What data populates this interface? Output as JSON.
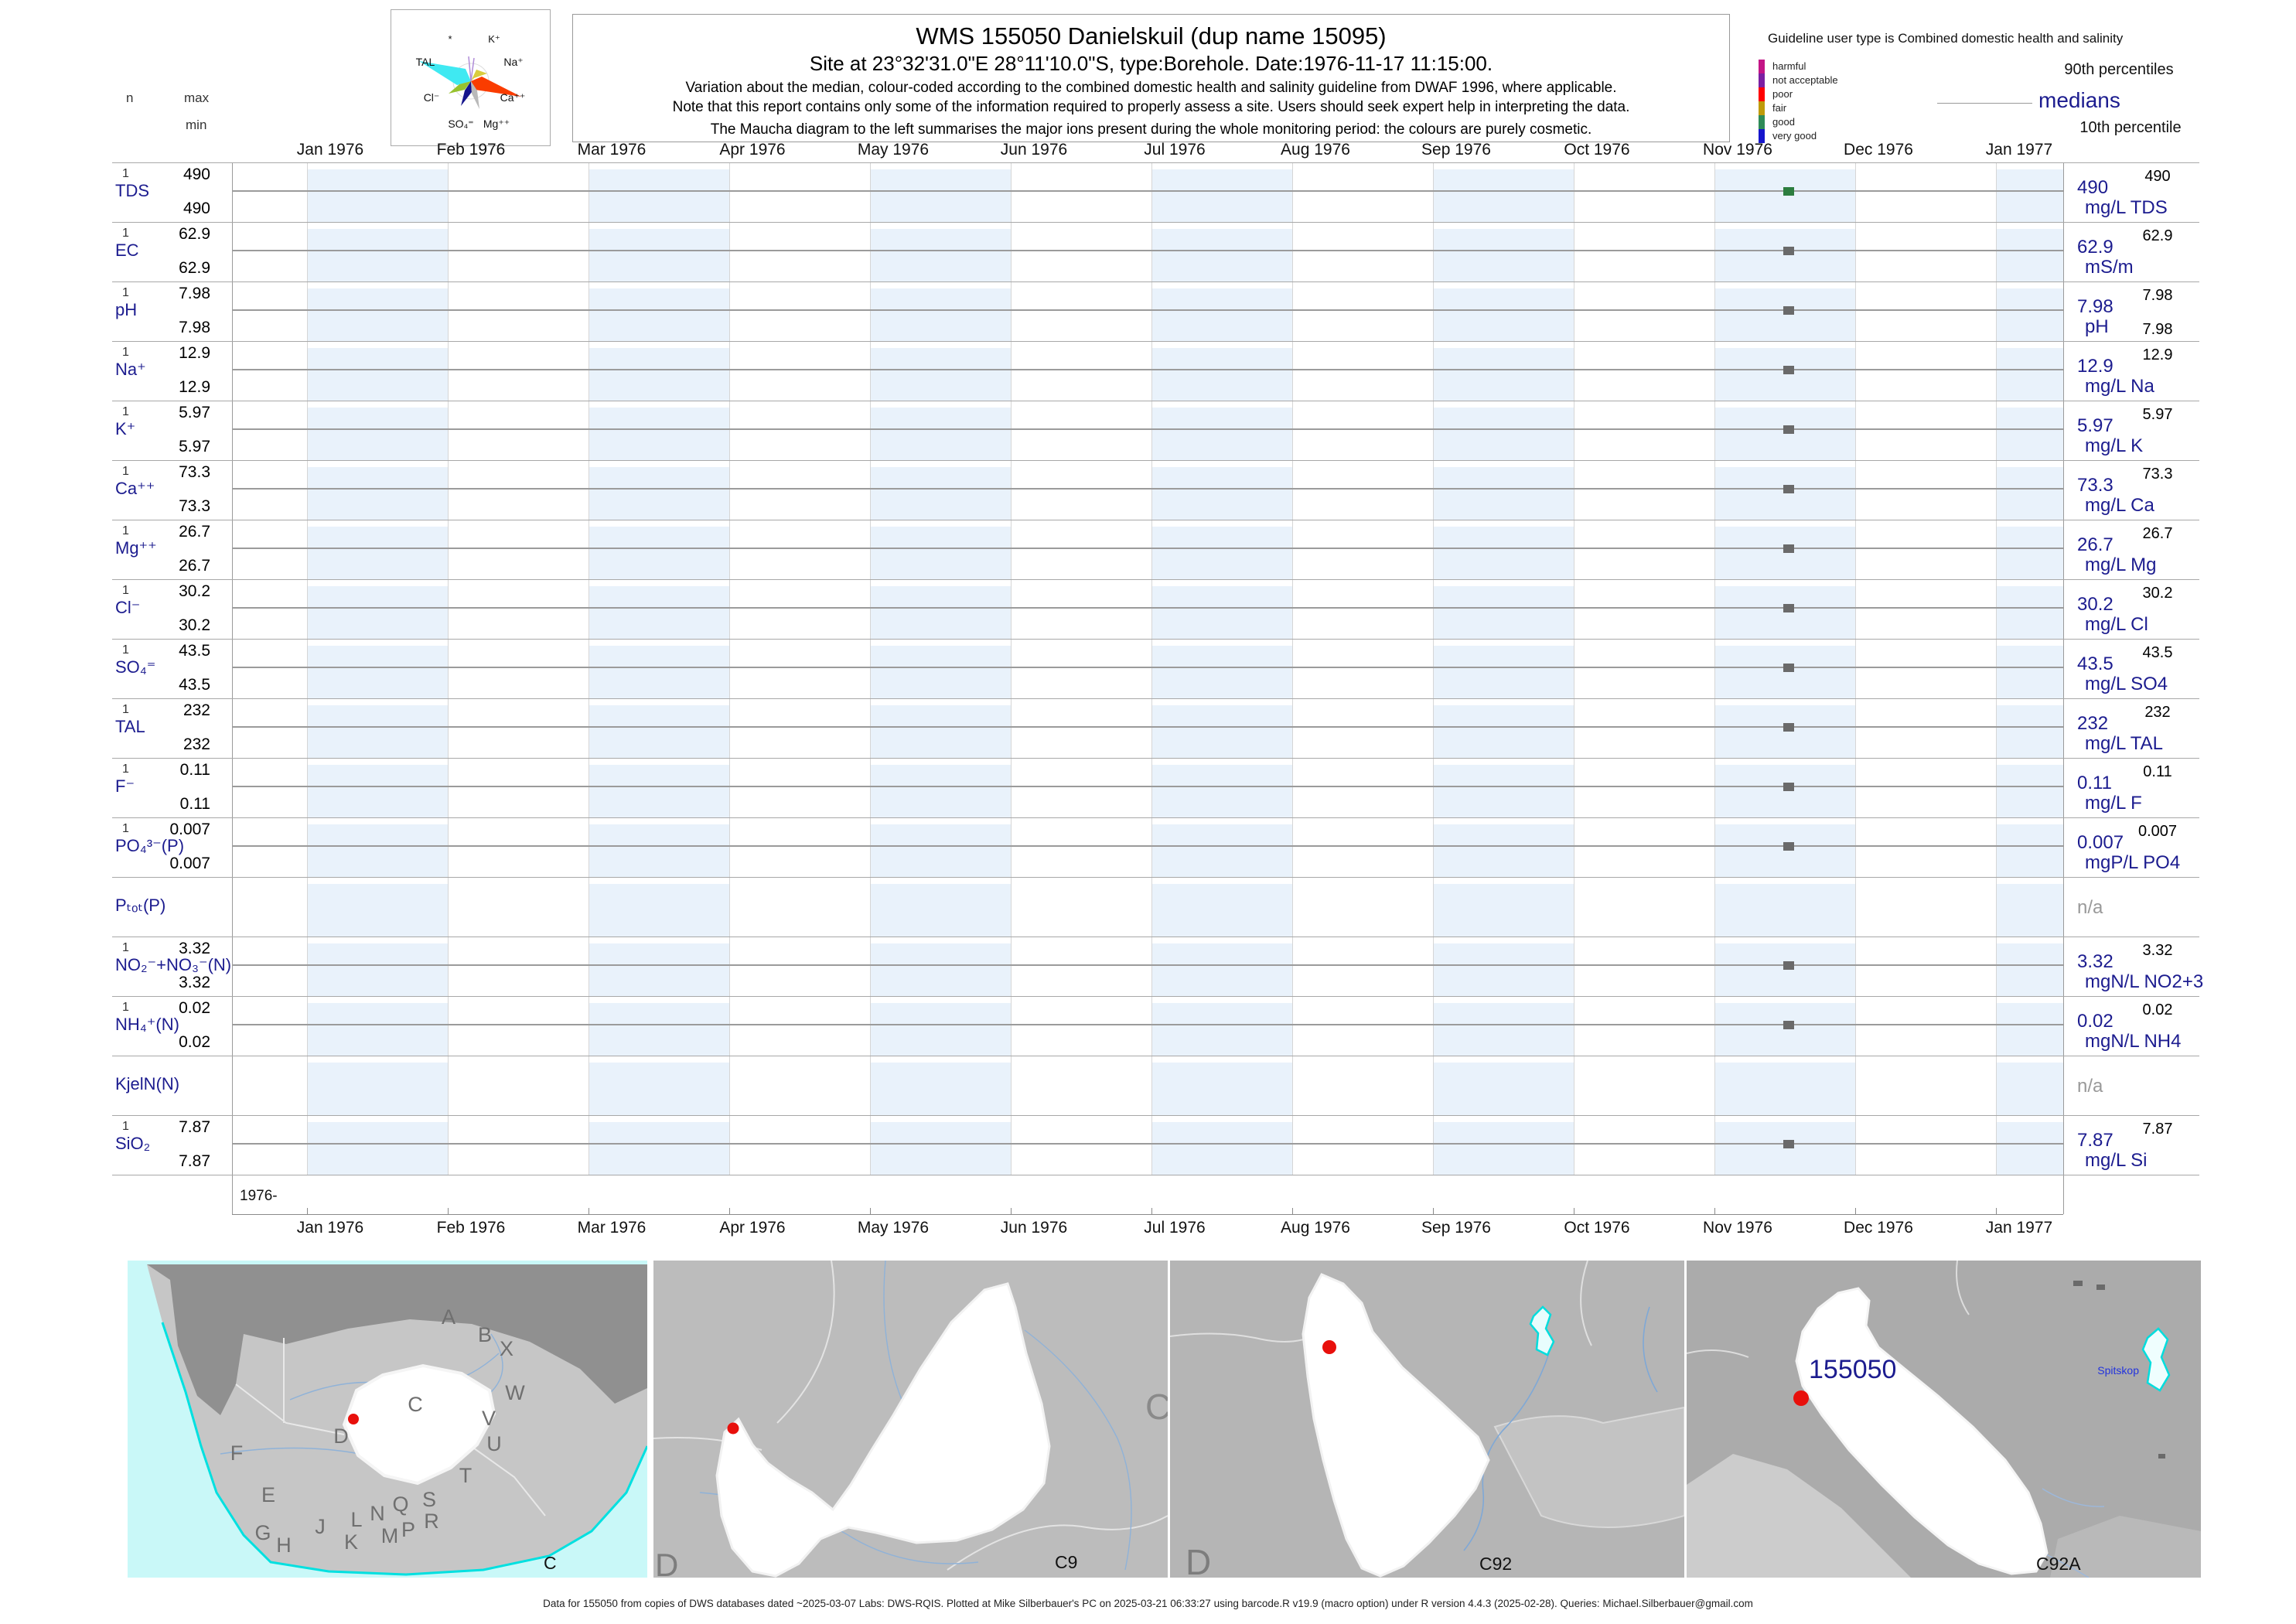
{
  "header": {
    "title": "WMS 155050  Danielskuil (dup name 15095)",
    "subtitle": "Site at 23°32'31.0\"E 28°11'10.0\"S, type:Borehole. Date:1976-11-17 11:15:00.",
    "note1": "Variation about the median,  colour-coded according to the combined domestic health and salinity guideline from DWAF 1996, where applicable.",
    "note2": "Note that this report contains only some of the information required to properly assess a site. Users should seek expert help in interpreting the data.",
    "note3": "The Maucha diagram to the left summarises the major ions present during the whole monitoring period: the colours are purely cosmetic."
  },
  "maucha": {
    "labels": [
      "*",
      "K⁺",
      "TAL",
      "Na⁺",
      "Cl⁻",
      "Ca⁺⁺",
      "SO₄⁼",
      "Mg⁺⁺"
    ]
  },
  "legend": {
    "guideline_text": "Guideline user type is Combined domestic health and salinity",
    "classes": [
      {
        "label": "harmful",
        "color": "#c31586"
      },
      {
        "label": "not acceptable",
        "color": "#7b1fa2"
      },
      {
        "label": "poor",
        "color": "#ff0000"
      },
      {
        "label": "fair",
        "color": "#bf9b0a"
      },
      {
        "label": "good",
        "color": "#2e8b57"
      },
      {
        "label": "very good",
        "color": "#1515cc"
      }
    ],
    "p90_label": "90th percentiles",
    "median_label": "medians",
    "p10_label": "10th percentile"
  },
  "axis": {
    "n_label": "n",
    "max_label": "max",
    "min_label": "min",
    "year_label": "1976-",
    "months": [
      "Jan 1976",
      "Feb 1976",
      "Mar 1976",
      "Apr 1976",
      "May 1976",
      "Jun 1976",
      "Jul 1976",
      "Aug 1976",
      "Sep 1976",
      "Oct 1976",
      "Nov 1976",
      "Dec 1976",
      "Jan 1977"
    ]
  },
  "rows": [
    {
      "name": "TDS",
      "n": "1",
      "max": "490",
      "min": "490",
      "p90": "490",
      "median": "490",
      "unit": "mg/L TDS",
      "dot": "#2c7d3e"
    },
    {
      "name": "EC",
      "n": "1",
      "max": "62.9",
      "min": "62.9",
      "p90": "62.9",
      "median": "62.9",
      "unit": "mS/m",
      "dot": "#6a6a6a"
    },
    {
      "name": "pH",
      "n": "1",
      "max": "7.98",
      "min": "7.98",
      "p90": "7.98",
      "p10": "7.98",
      "median": "7.98",
      "unit": "pH",
      "dot": "#6a6a6a"
    },
    {
      "name": "Na⁺",
      "n": "1",
      "max": "12.9",
      "min": "12.9",
      "p90": "12.9",
      "median": "12.9",
      "unit": "mg/L Na",
      "dot": "#6a6a6a"
    },
    {
      "name": "K⁺",
      "n": "1",
      "max": "5.97",
      "min": "5.97",
      "p90": "5.97",
      "median": "5.97",
      "unit": "mg/L K",
      "dot": "#6a6a6a"
    },
    {
      "name": "Ca⁺⁺",
      "n": "1",
      "max": "73.3",
      "min": "73.3",
      "p90": "73.3",
      "median": "73.3",
      "unit": "mg/L Ca",
      "dot": "#6a6a6a"
    },
    {
      "name": "Mg⁺⁺",
      "n": "1",
      "max": "26.7",
      "min": "26.7",
      "p90": "26.7",
      "median": "26.7",
      "unit": "mg/L Mg",
      "dot": "#6a6a6a"
    },
    {
      "name": "Cl⁻",
      "n": "1",
      "max": "30.2",
      "min": "30.2",
      "p90": "30.2",
      "median": "30.2",
      "unit": "mg/L Cl",
      "dot": "#6a6a6a"
    },
    {
      "name": "SO₄⁼",
      "n": "1",
      "max": "43.5",
      "min": "43.5",
      "p90": "43.5",
      "median": "43.5",
      "unit": "mg/L SO4",
      "dot": "#6a6a6a"
    },
    {
      "name": "TAL",
      "n": "1",
      "max": "232",
      "min": "232",
      "p90": "232",
      "median": "232",
      "unit": "mg/L TAL",
      "dot": "#6a6a6a"
    },
    {
      "name": "F⁻",
      "n": "1",
      "max": "0.11",
      "min": "0.11",
      "p90": "0.11",
      "median": "0.11",
      "unit": "mg/L F",
      "dot": "#6a6a6a"
    },
    {
      "name": "PO₄³⁻(P)",
      "n": "1",
      "max": "0.007",
      "min": "0.007",
      "p90": "0.007",
      "median": "0.007",
      "unit": "mgP/L PO4",
      "dot": "#6a6a6a"
    },
    {
      "name": "Pₜₒₜ(P)",
      "na": "n/a"
    },
    {
      "name": "NO₂⁻+NO₃⁻(N)",
      "n": "1",
      "max": "3.32",
      "min": "3.32",
      "p90": "3.32",
      "median": "3.32",
      "unit": "mgN/L NO2+3",
      "dot": "#6a6a6a"
    },
    {
      "name": "NH₄⁺(N)",
      "n": "1",
      "max": "0.02",
      "min": "0.02",
      "p90": "0.02",
      "median": "0.02",
      "unit": "mgN/L NH4",
      "dot": "#6a6a6a"
    },
    {
      "name": "KjelN(N)",
      "na": "n/a"
    },
    {
      "name": "SiO₂",
      "n": "1",
      "max": "7.87",
      "min": "7.87",
      "p90": "7.87",
      "median": "7.87",
      "unit": "mg/L Si",
      "dot": "#6a6a6a"
    }
  ],
  "maps": {
    "panel1": {
      "code": "C",
      "letters": [
        "A",
        "B",
        "X",
        "C",
        "W",
        "V",
        "U",
        "T",
        "S",
        "R",
        "Q",
        "P",
        "N",
        "M",
        "L",
        "K",
        "J",
        "H",
        "G",
        "E",
        "F",
        "D"
      ]
    },
    "panel2": {
      "code": "C9",
      "corner_letter": "D",
      "edge_letter": "C"
    },
    "panel3": {
      "code": "C92",
      "corner_letter": "D"
    },
    "panel4": {
      "code": "C92A",
      "station": "155050",
      "place": "Spitskop"
    }
  },
  "footer": {
    "text": "Data for 155050 from copies of DWS databases dated ~2025-03-07 Labs: DWS-RQIS. Plotted at Mike Silberbauer's PC on 2025-03-21 06:33:27 using barcode.R v19.9 (macro option) under R version 4.4.3 (2025-02-28). Queries: Michael.Silberbauer@gmail.com"
  },
  "colors": {
    "accent_navy": "#1c1c8f",
    "band_blue": "#e9f2fb",
    "dot_green": "#2c7d3e",
    "dot_gray": "#6a6a6a",
    "marker_red": "#e8100c",
    "ocean_cyan": "#c9f8f8"
  },
  "chart_data": {
    "type": "scatter",
    "title": "WMS 155050  Danielskuil (dup name 15095)",
    "x_range": [
      "Jan 1976",
      "Jan 1977"
    ],
    "sample_date": "1976-11-17 11:15:00",
    "legend_position": "top-right",
    "series": [
      {
        "parameter": "TDS",
        "unit": "mg/L TDS",
        "n": 1,
        "min": 490,
        "max": 490,
        "median": 490,
        "p90": 490
      },
      {
        "parameter": "EC",
        "unit": "mS/m",
        "n": 1,
        "min": 62.9,
        "max": 62.9,
        "median": 62.9,
        "p90": 62.9
      },
      {
        "parameter": "pH",
        "unit": "pH",
        "n": 1,
        "min": 7.98,
        "max": 7.98,
        "median": 7.98,
        "p90": 7.98,
        "p10": 7.98
      },
      {
        "parameter": "Na",
        "unit": "mg/L Na",
        "n": 1,
        "min": 12.9,
        "max": 12.9,
        "median": 12.9,
        "p90": 12.9
      },
      {
        "parameter": "K",
        "unit": "mg/L K",
        "n": 1,
        "min": 5.97,
        "max": 5.97,
        "median": 5.97,
        "p90": 5.97
      },
      {
        "parameter": "Ca",
        "unit": "mg/L Ca",
        "n": 1,
        "min": 73.3,
        "max": 73.3,
        "median": 73.3,
        "p90": 73.3
      },
      {
        "parameter": "Mg",
        "unit": "mg/L Mg",
        "n": 1,
        "min": 26.7,
        "max": 26.7,
        "median": 26.7,
        "p90": 26.7
      },
      {
        "parameter": "Cl",
        "unit": "mg/L Cl",
        "n": 1,
        "min": 30.2,
        "max": 30.2,
        "median": 30.2,
        "p90": 30.2
      },
      {
        "parameter": "SO4",
        "unit": "mg/L SO4",
        "n": 1,
        "min": 43.5,
        "max": 43.5,
        "median": 43.5,
        "p90": 43.5
      },
      {
        "parameter": "TAL",
        "unit": "mg/L TAL",
        "n": 1,
        "min": 232,
        "max": 232,
        "median": 232,
        "p90": 232
      },
      {
        "parameter": "F",
        "unit": "mg/L F",
        "n": 1,
        "min": 0.11,
        "max": 0.11,
        "median": 0.11,
        "p90": 0.11
      },
      {
        "parameter": "PO4(P)",
        "unit": "mgP/L PO4",
        "n": 1,
        "min": 0.007,
        "max": 0.007,
        "median": 0.007,
        "p90": 0.007
      },
      {
        "parameter": "Ptot(P)",
        "value": "n/a"
      },
      {
        "parameter": "NO2+NO3(N)",
        "unit": "mgN/L NO2+3",
        "n": 1,
        "min": 3.32,
        "max": 3.32,
        "median": 3.32,
        "p90": 3.32
      },
      {
        "parameter": "NH4(N)",
        "unit": "mgN/L NH4",
        "n": 1,
        "min": 0.02,
        "max": 0.02,
        "median": 0.02,
        "p90": 0.02
      },
      {
        "parameter": "KjelN(N)",
        "value": "n/a"
      },
      {
        "parameter": "SiO2",
        "unit": "mg/L Si",
        "n": 1,
        "min": 7.87,
        "max": 7.87,
        "median": 7.87,
        "p90": 7.87
      }
    ]
  }
}
